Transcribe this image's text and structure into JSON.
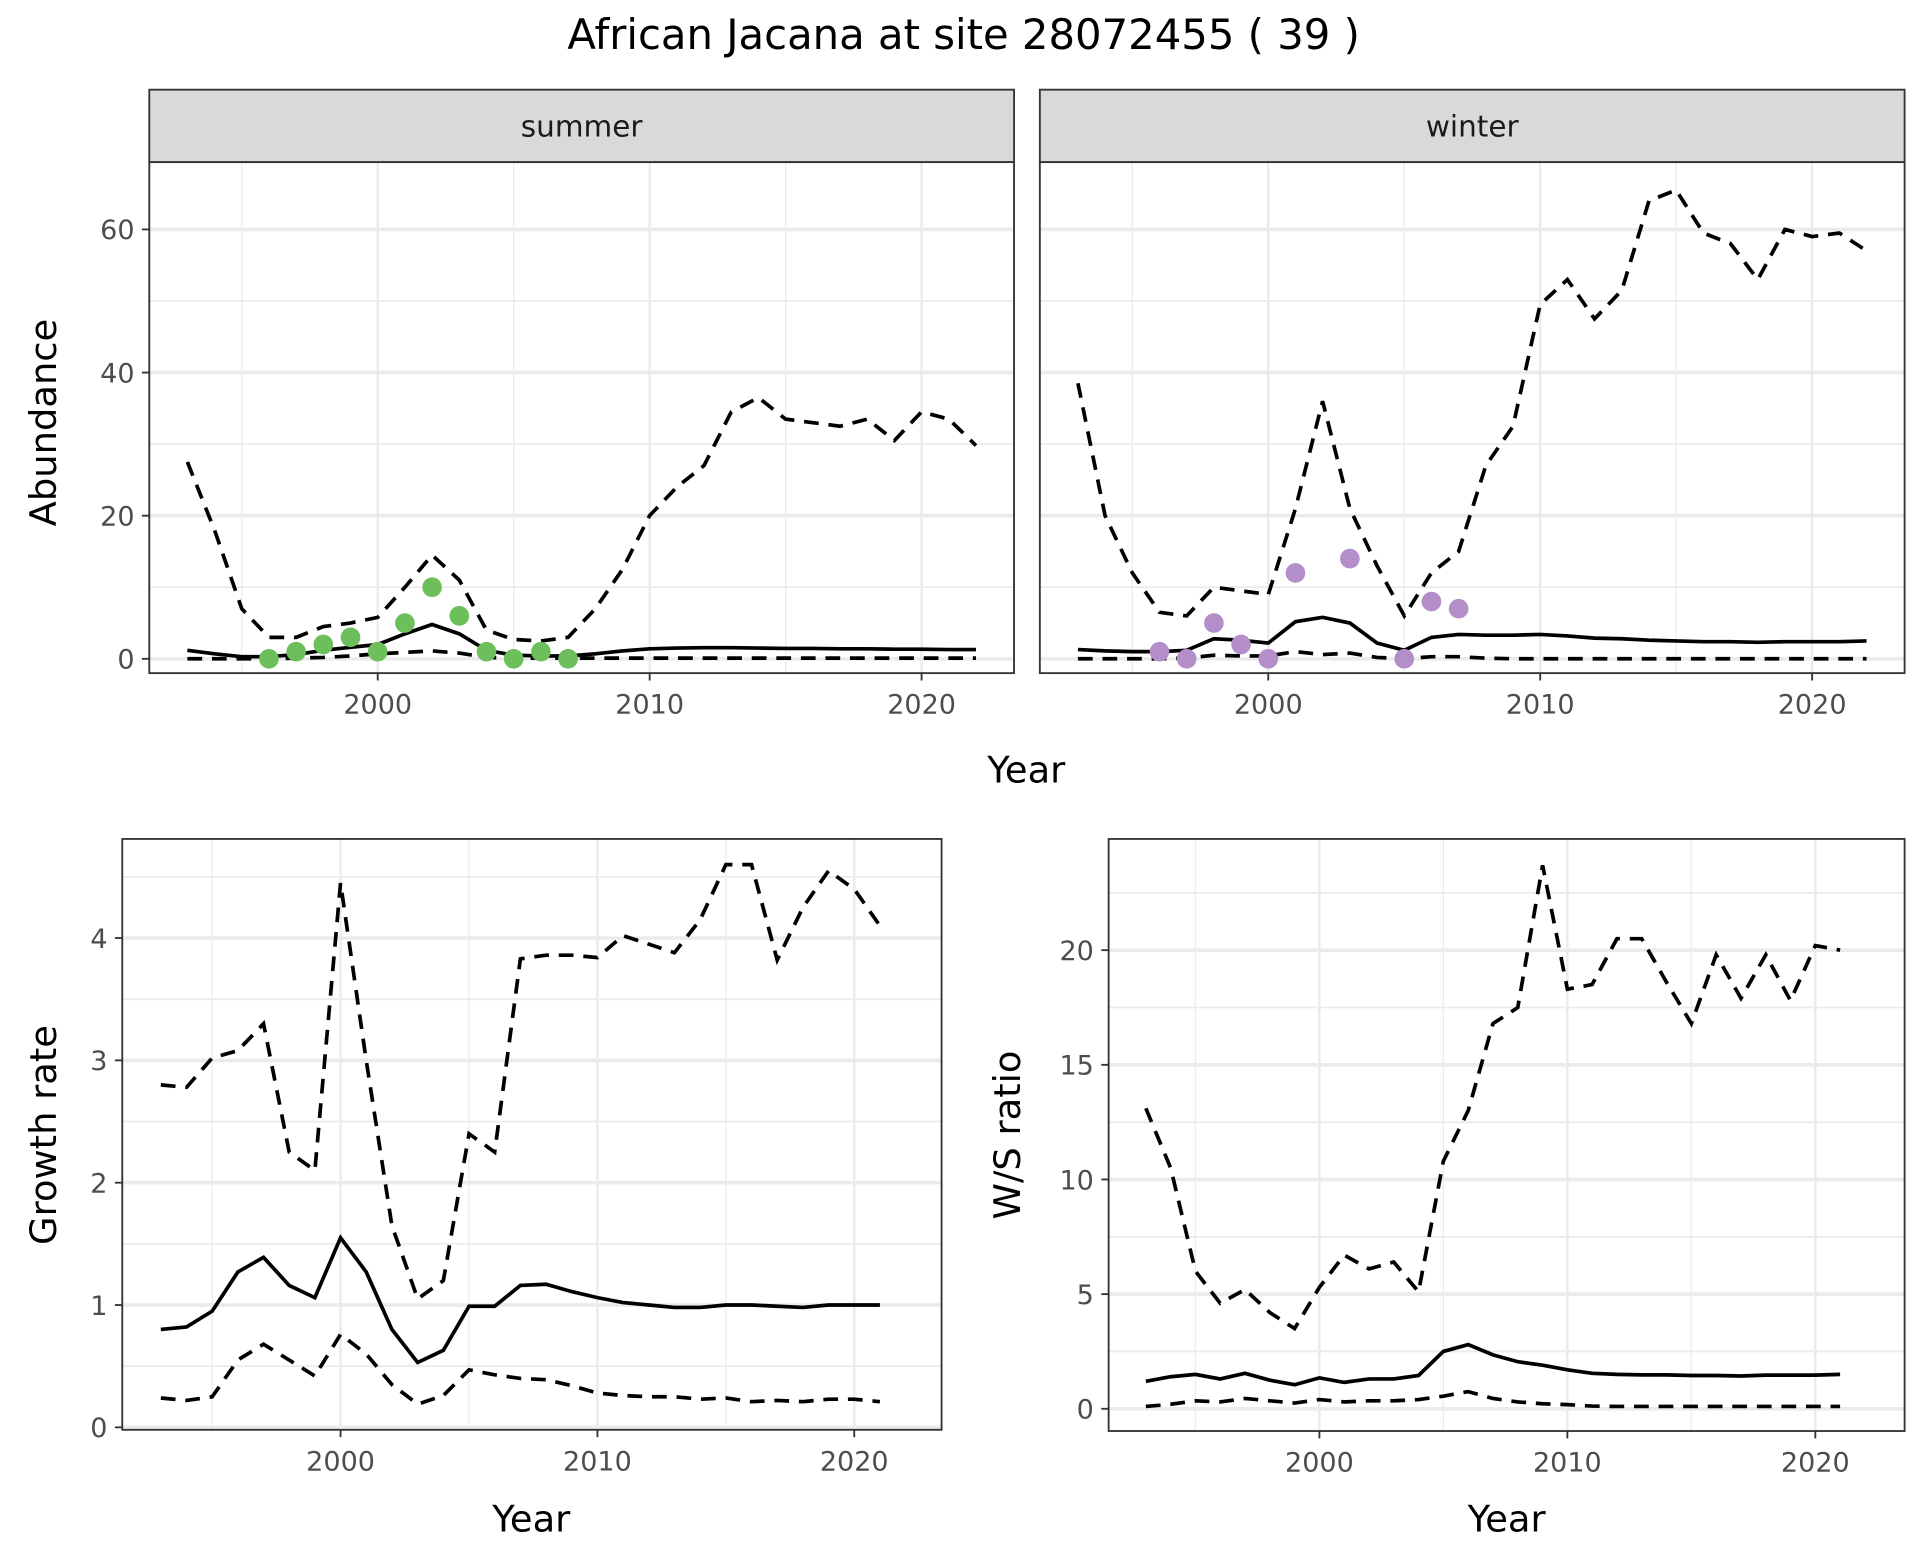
{
  "chart_data": [
    {
      "type": "line",
      "title": "African Jacana at site 28072455 ( 39 )",
      "facet": "summer",
      "xlabel": "Year",
      "ylabel": "Abundance",
      "xlim": [
        1991.6,
        2023.4
      ],
      "ylim": [
        -2,
        69.4
      ],
      "xticks": [
        2000,
        2010,
        2020
      ],
      "yticks": [
        0,
        20,
        40,
        60
      ],
      "grid": true,
      "x": [
        1993,
        1994,
        1995,
        1996,
        1997,
        1998,
        1999,
        2000,
        2001,
        2002,
        2003,
        2004,
        2005,
        2006,
        2007,
        2008,
        2009,
        2010,
        2011,
        2012,
        2013,
        2014,
        2015,
        2016,
        2017,
        2018,
        2019,
        2020,
        2021,
        2022
      ],
      "series": [
        {
          "name": "upper",
          "style": "dashed",
          "values": [
            27.5,
            18,
            7,
            3,
            3,
            4.5,
            5,
            5.8,
            10,
            14.5,
            11,
            4,
            2.7,
            2.5,
            3,
            7,
            12.5,
            20,
            24,
            27,
            34.5,
            36.5,
            33.5,
            33,
            32.5,
            33.5,
            30.5,
            34.5,
            33.5,
            29.8
          ]
        },
        {
          "name": "mean",
          "style": "solid",
          "values": [
            1.2,
            0.7,
            0.3,
            0.3,
            0.6,
            1.2,
            1.6,
            2,
            3.5,
            4.8,
            3.5,
            1.2,
            0.5,
            0.4,
            0.4,
            0.7,
            1.1,
            1.4,
            1.5,
            1.55,
            1.55,
            1.5,
            1.45,
            1.45,
            1.4,
            1.4,
            1.35,
            1.35,
            1.3,
            1.3
          ]
        },
        {
          "name": "lower",
          "style": "dashed",
          "values": [
            0,
            0,
            0,
            0,
            0.1,
            0.2,
            0.4,
            0.7,
            0.9,
            1.1,
            0.8,
            0.2,
            0.1,
            0.1,
            0.1,
            0.1,
            0.1,
            0.1,
            0.1,
            0.1,
            0.1,
            0.1,
            0.1,
            0.1,
            0.1,
            0.1,
            0.1,
            0.1,
            0.1,
            0.1
          ]
        }
      ],
      "points": {
        "color": "#6dbf5b",
        "x": [
          1996,
          1997,
          1998,
          1999,
          2000,
          2001,
          2002,
          2003,
          2004,
          2005,
          2006,
          2007
        ],
        "y": [
          0,
          1,
          2,
          3,
          1,
          5,
          10,
          6,
          1,
          0,
          1,
          0
        ]
      }
    },
    {
      "type": "line",
      "facet": "winter",
      "xlabel": "Year",
      "ylabel": "Abundance",
      "xlim": [
        1991.6,
        2023.4
      ],
      "ylim": [
        -2,
        69.4
      ],
      "xticks": [
        2000,
        2010,
        2020
      ],
      "yticks": [
        0,
        20,
        40,
        60
      ],
      "grid": true,
      "x": [
        1993,
        1994,
        1995,
        1996,
        1997,
        1998,
        1999,
        2000,
        2001,
        2002,
        2003,
        2004,
        2005,
        2006,
        2007,
        2008,
        2009,
        2010,
        2011,
        2012,
        2013,
        2014,
        2015,
        2016,
        2017,
        2018,
        2019,
        2020,
        2021,
        2022
      ],
      "series": [
        {
          "name": "upper",
          "style": "dashed",
          "values": [
            38.5,
            20,
            12,
            6.5,
            6,
            10,
            9.5,
            9,
            21,
            36,
            21,
            13,
            6,
            12,
            15,
            27,
            32.5,
            49.5,
            53,
            47.5,
            51.5,
            64,
            65.5,
            59.5,
            58,
            53,
            60,
            59,
            59.5,
            57
          ]
        },
        {
          "name": "mean",
          "style": "solid",
          "values": [
            1.3,
            1.1,
            1,
            1,
            1.2,
            2.8,
            2.6,
            2.2,
            5.2,
            5.8,
            5,
            2.2,
            1.2,
            3,
            3.4,
            3.3,
            3.3,
            3.4,
            3.2,
            2.9,
            2.8,
            2.6,
            2.5,
            2.4,
            2.4,
            2.3,
            2.4,
            2.4,
            2.4,
            2.5
          ]
        },
        {
          "name": "lower",
          "style": "dashed",
          "values": [
            0,
            0,
            0,
            0,
            0.1,
            0.5,
            0.4,
            0.4,
            1,
            0.6,
            0.8,
            0.2,
            0,
            0.3,
            0.3,
            0.1,
            0,
            0,
            0,
            0,
            0,
            0,
            0,
            0,
            0,
            0,
            0,
            0,
            0,
            0
          ]
        }
      ],
      "points": {
        "color": "#b48ec9",
        "x": [
          1996,
          1997,
          1998,
          1999,
          2000,
          2001,
          2003,
          2005,
          2006,
          2007
        ],
        "y": [
          1,
          0,
          5,
          2,
          0,
          12,
          14,
          0,
          8,
          7
        ]
      }
    },
    {
      "type": "line",
      "xlabel": "Year",
      "ylabel": "Growth rate",
      "xlim": [
        1991.5,
        2023.4
      ],
      "ylim": [
        -0.02,
        4.81
      ],
      "xticks": [
        2000,
        2010,
        2020
      ],
      "yticks": [
        0,
        1,
        2,
        3,
        4
      ],
      "grid": true,
      "x": [
        1993,
        1994,
        1995,
        1996,
        1997,
        1998,
        1999,
        2000,
        2001,
        2002,
        2003,
        2004,
        2005,
        2006,
        2007,
        2008,
        2009,
        2010,
        2011,
        2012,
        2013,
        2014,
        2015,
        2016,
        2017,
        2018,
        2019,
        2020,
        2021
      ],
      "series": [
        {
          "name": "upper",
          "style": "dashed",
          "values": [
            2.8,
            2.78,
            3.02,
            3.08,
            3.3,
            2.25,
            2.1,
            4.45,
            3,
            1.65,
            1.05,
            1.2,
            2.4,
            2.25,
            3.83,
            3.86,
            3.86,
            3.84,
            4.02,
            3.95,
            3.88,
            4.15,
            4.6,
            4.6,
            3.82,
            4.25,
            4.55,
            4.4,
            4.1
          ]
        },
        {
          "name": "mean",
          "style": "solid",
          "values": [
            0.8,
            0.82,
            0.95,
            1.27,
            1.39,
            1.16,
            1.06,
            1.55,
            1.27,
            0.8,
            0.53,
            0.63,
            0.99,
            0.99,
            1.16,
            1.17,
            1.11,
            1.06,
            1.02,
            1,
            0.98,
            0.98,
            1,
            1,
            0.99,
            0.98,
            1,
            1,
            1
          ]
        },
        {
          "name": "lower",
          "style": "dashed",
          "values": [
            0.24,
            0.22,
            0.25,
            0.55,
            0.68,
            0.55,
            0.42,
            0.76,
            0.6,
            0.35,
            0.19,
            0.26,
            0.47,
            0.43,
            0.4,
            0.39,
            0.34,
            0.28,
            0.26,
            0.25,
            0.25,
            0.23,
            0.24,
            0.21,
            0.22,
            0.21,
            0.23,
            0.23,
            0.21
          ]
        }
      ]
    },
    {
      "type": "line",
      "xlabel": "Year",
      "ylabel": "W/S ratio",
      "xlim": [
        1991.5,
        2023.6
      ],
      "ylim": [
        -0.97,
        24.85
      ],
      "xticks": [
        2000,
        2010,
        2020
      ],
      "yticks": [
        0,
        5,
        10,
        15,
        20
      ],
      "grid": true,
      "x": [
        1993,
        1994,
        1995,
        1996,
        1997,
        1998,
        1999,
        2000,
        2001,
        2002,
        2003,
        2004,
        2005,
        2006,
        2007,
        2008,
        2009,
        2010,
        2011,
        2012,
        2013,
        2014,
        2015,
        2016,
        2017,
        2018,
        2019,
        2020,
        2021
      ],
      "series": [
        {
          "name": "upper",
          "style": "dashed",
          "values": [
            13.1,
            10.5,
            6,
            4.6,
            5.2,
            4.2,
            3.5,
            5.3,
            6.7,
            6.1,
            6.4,
            5.1,
            10.8,
            13,
            16.8,
            17.5,
            23.7,
            18.3,
            18.5,
            20.5,
            20.5,
            18.6,
            16.8,
            19.8,
            17.9,
            19.8,
            17.8,
            20.2,
            20
          ]
        },
        {
          "name": "mean",
          "style": "solid",
          "values": [
            1.2,
            1.4,
            1.5,
            1.3,
            1.55,
            1.25,
            1.05,
            1.35,
            1.15,
            1.3,
            1.3,
            1.45,
            2.5,
            2.8,
            2.35,
            2.05,
            1.9,
            1.7,
            1.55,
            1.5,
            1.48,
            1.48,
            1.45,
            1.45,
            1.43,
            1.47,
            1.47,
            1.47,
            1.5
          ]
        },
        {
          "name": "lower",
          "style": "dashed",
          "values": [
            0.1,
            0.2,
            0.35,
            0.3,
            0.45,
            0.35,
            0.25,
            0.4,
            0.3,
            0.35,
            0.35,
            0.4,
            0.55,
            0.75,
            0.45,
            0.3,
            0.22,
            0.18,
            0.12,
            0.1,
            0.1,
            0.1,
            0.1,
            0.1,
            0.1,
            0.1,
            0.1,
            0.1,
            0.1
          ]
        }
      ]
    }
  ]
}
